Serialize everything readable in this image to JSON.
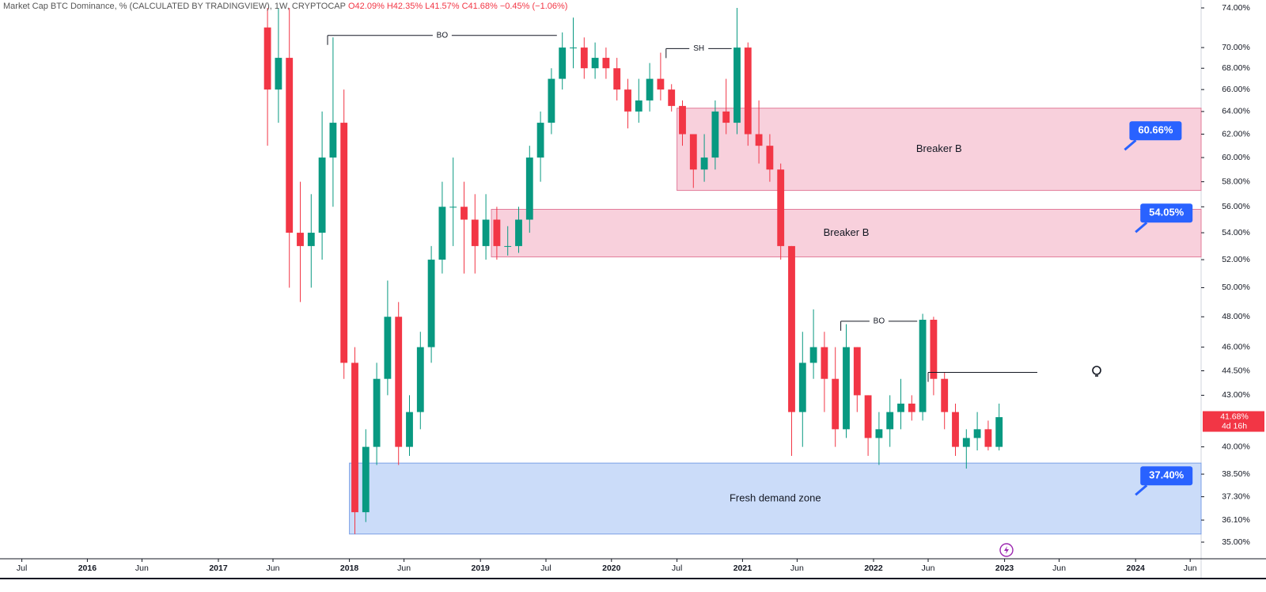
{
  "chart_data": {
    "type": "candlestick",
    "title": "Market Cap BTC Dominance, % (CALCULATED BY TRADINGVIEW), 1W, CRYPTOCAP",
    "ohlc_labels": [
      "O42.09%",
      "H42.35%",
      "L41.57%",
      "C41.68%",
      "−0.45% (−1.06%)"
    ],
    "log_scale": true,
    "up_color": "#089981",
    "down_color": "#f23645",
    "x": [
      "2017-05",
      "2017-06",
      "2017-07",
      "2017-08",
      "2017-09",
      "2017-10",
      "2017-11",
      "2017-12",
      "2018-01",
      "2018-02",
      "2018-03",
      "2018-04",
      "2018-05",
      "2018-06",
      "2018-07",
      "2018-08",
      "2018-09",
      "2018-10",
      "2018-11",
      "2018-12",
      "2019-01",
      "2019-02",
      "2019-03",
      "2019-04",
      "2019-05",
      "2019-06",
      "2019-07",
      "2019-08",
      "2019-09",
      "2019-10",
      "2019-11",
      "2019-12",
      "2020-01",
      "2020-02",
      "2020-03",
      "2020-04",
      "2020-05",
      "2020-06",
      "2020-07",
      "2020-08",
      "2020-09",
      "2020-10",
      "2020-11",
      "2020-12",
      "2021-01",
      "2021-02",
      "2021-03",
      "2021-04",
      "2021-05",
      "2021-06",
      "2021-07",
      "2021-08",
      "2021-09",
      "2021-10",
      "2021-11",
      "2021-12",
      "2022-01",
      "2022-02",
      "2022-03",
      "2022-04",
      "2022-05",
      "2022-06",
      "2022-07",
      "2022-08",
      "2022-09",
      "2022-10",
      "2022-11",
      "2022-12"
    ],
    "open": [
      72,
      66,
      69,
      54,
      53,
      54,
      60,
      63,
      45,
      36.5,
      40,
      44,
      48,
      40,
      42,
      46,
      52,
      56,
      56,
      55,
      53,
      55,
      53,
      53,
      55,
      60,
      63,
      67,
      70,
      70,
      68,
      69,
      68,
      66,
      64,
      65,
      67,
      66,
      64.5,
      62,
      59,
      60,
      64,
      63,
      70,
      62,
      61,
      59,
      53,
      42,
      45,
      46,
      44,
      41,
      46,
      43,
      40.5,
      41,
      42,
      42.5,
      42,
      47.8,
      44,
      42,
      40,
      40.5,
      41,
      40
    ],
    "high": [
      74,
      74,
      74,
      58,
      57,
      64,
      71,
      66,
      46,
      41,
      45,
      50.5,
      49,
      43,
      47,
      53,
      58,
      60,
      58,
      57,
      57,
      56,
      54.5,
      56,
      61,
      64,
      68,
      71.5,
      73,
      71,
      70.5,
      70,
      69,
      67,
      67,
      68.5,
      69.5,
      66.5,
      65,
      62,
      62,
      65,
      67,
      74,
      70.5,
      65,
      62,
      59.5,
      53,
      47,
      48.5,
      47,
      46,
      47.5,
      46,
      43,
      42,
      43,
      44,
      43,
      48.2,
      48,
      44.4,
      42.5,
      41,
      42,
      41.5,
      42.5
    ],
    "low": [
      61,
      63,
      50,
      49,
      50,
      52,
      56,
      44,
      35.4,
      36,
      39,
      43,
      39,
      39.5,
      41,
      45,
      51,
      53,
      51,
      51,
      52,
      52,
      52.3,
      52.5,
      54,
      58,
      62,
      66,
      68,
      67,
      67,
      67,
      65,
      62.5,
      63,
      64,
      65,
      64,
      61,
      57.5,
      58,
      59,
      62,
      62,
      61,
      59.5,
      58,
      52,
      39.5,
      40,
      44,
      42,
      40,
      40.5,
      42,
      39.5,
      39,
      40,
      41,
      41.5,
      41.5,
      43,
      41,
      39.5,
      38.8,
      39.8,
      39.8,
      39.8
    ],
    "close": [
      66,
      69,
      54,
      53,
      54,
      60,
      63,
      45,
      36.5,
      40,
      44,
      48,
      40,
      42,
      46,
      52,
      56,
      56,
      55,
      53,
      55,
      53,
      53,
      55,
      60,
      63,
      67,
      70,
      70,
      68,
      69,
      68,
      66,
      64,
      65,
      67,
      66,
      64.5,
      62,
      59,
      60,
      64,
      63,
      70,
      62,
      61,
      59,
      53,
      42,
      45,
      46,
      44,
      41,
      46,
      43,
      40.5,
      41,
      42,
      42.5,
      42,
      47.8,
      44,
      42,
      40,
      40.5,
      41,
      40,
      41.7
    ],
    "xlim": [
      "2015-05",
      "2024-07"
    ],
    "xticks": [
      {
        "value": "2015-07",
        "label": "Jul"
      },
      {
        "value": "2016-01",
        "label": "2016"
      },
      {
        "value": "2016-06",
        "label": "Jun"
      },
      {
        "value": "2017-01",
        "label": "2017"
      },
      {
        "value": "2017-06",
        "label": "Jun"
      },
      {
        "value": "2018-01",
        "label": "2018"
      },
      {
        "value": "2018-06",
        "label": "Jun"
      },
      {
        "value": "2019-01",
        "label": "2019"
      },
      {
        "value": "2019-07",
        "label": "Jul"
      },
      {
        "value": "2020-01",
        "label": "2020"
      },
      {
        "value": "2020-07",
        "label": "Jul"
      },
      {
        "value": "2021-01",
        "label": "2021"
      },
      {
        "value": "2021-06",
        "label": "Jun"
      },
      {
        "value": "2022-01",
        "label": "2022"
      },
      {
        "value": "2022-06",
        "label": "Jun"
      },
      {
        "value": "2023-01",
        "label": "2023"
      },
      {
        "value": "2023-06",
        "label": "Jun"
      },
      {
        "value": "2024-01",
        "label": "2024"
      },
      {
        "value": "2024-06",
        "label": "Jun"
      }
    ],
    "ylim": [
      35,
      74
    ],
    "yticks": [
      {
        "value": 74,
        "label": "74.00%"
      },
      {
        "value": 70,
        "label": "70.00%"
      },
      {
        "value": 68,
        "label": "68.00%"
      },
      {
        "value": 66,
        "label": "66.00%"
      },
      {
        "value": 64,
        "label": "64.00%"
      },
      {
        "value": 62,
        "label": "62.00%"
      },
      {
        "value": 60,
        "label": "60.00%"
      },
      {
        "value": 58,
        "label": "58.00%"
      },
      {
        "value": 56,
        "label": "56.00%"
      },
      {
        "value": 54,
        "label": "54.00%"
      },
      {
        "value": 52,
        "label": "52.00%"
      },
      {
        "value": 50,
        "label": "50.00%"
      },
      {
        "value": 48,
        "label": "48.00%"
      },
      {
        "value": 46,
        "label": "46.00%"
      },
      {
        "value": 44.5,
        "label": "44.50%"
      },
      {
        "value": 43,
        "label": "43.00%"
      },
      {
        "value": 40,
        "label": "40.00%"
      },
      {
        "value": 38.5,
        "label": "38.50%"
      },
      {
        "value": 37.3,
        "label": "37.30%"
      },
      {
        "value": 36.1,
        "label": "36.10%"
      },
      {
        "value": 35,
        "label": "35.00%"
      }
    ],
    "zones": [
      {
        "label": "Breaker B",
        "start": "2020-07",
        "top": 64.3,
        "bottom": 57.3,
        "color": "#f8d0dc",
        "border": "#e27b9a"
      },
      {
        "label": "Breaker B",
        "start": "2019-02",
        "top": 55.8,
        "bottom": 52.2,
        "color": "#f8d0dc",
        "border": "#e27b9a"
      },
      {
        "label": "Fresh demand zone",
        "start": "2018-01",
        "top": 39.1,
        "bottom": 35.4,
        "color": "#cbdcf9",
        "border": "#7ca0e6"
      }
    ],
    "lines": [
      {
        "label": "BO",
        "start": "2017-11",
        "end": "2019-08",
        "value": 71.2
      },
      {
        "label": "SH",
        "start": "2020-06",
        "end": "2020-12",
        "value": 69.9
      },
      {
        "label": "BO",
        "start": "2021-10",
        "end": "2022-05",
        "value": 47.7
      },
      {
        "start": "2022-06",
        "end": "2023-04",
        "value": 44.4
      }
    ],
    "price_labels": [
      {
        "value": 60.66,
        "label": "60.66%",
        "at": "2023-12"
      },
      {
        "value": 54.05,
        "label": "54.05%",
        "at": "2024-01"
      },
      {
        "value": 37.4,
        "label": "37.40%",
        "at": "2024-01"
      }
    ],
    "last_price": {
      "value": 41.68,
      "label": "41.68%",
      "countdown": "4d 16h"
    }
  }
}
